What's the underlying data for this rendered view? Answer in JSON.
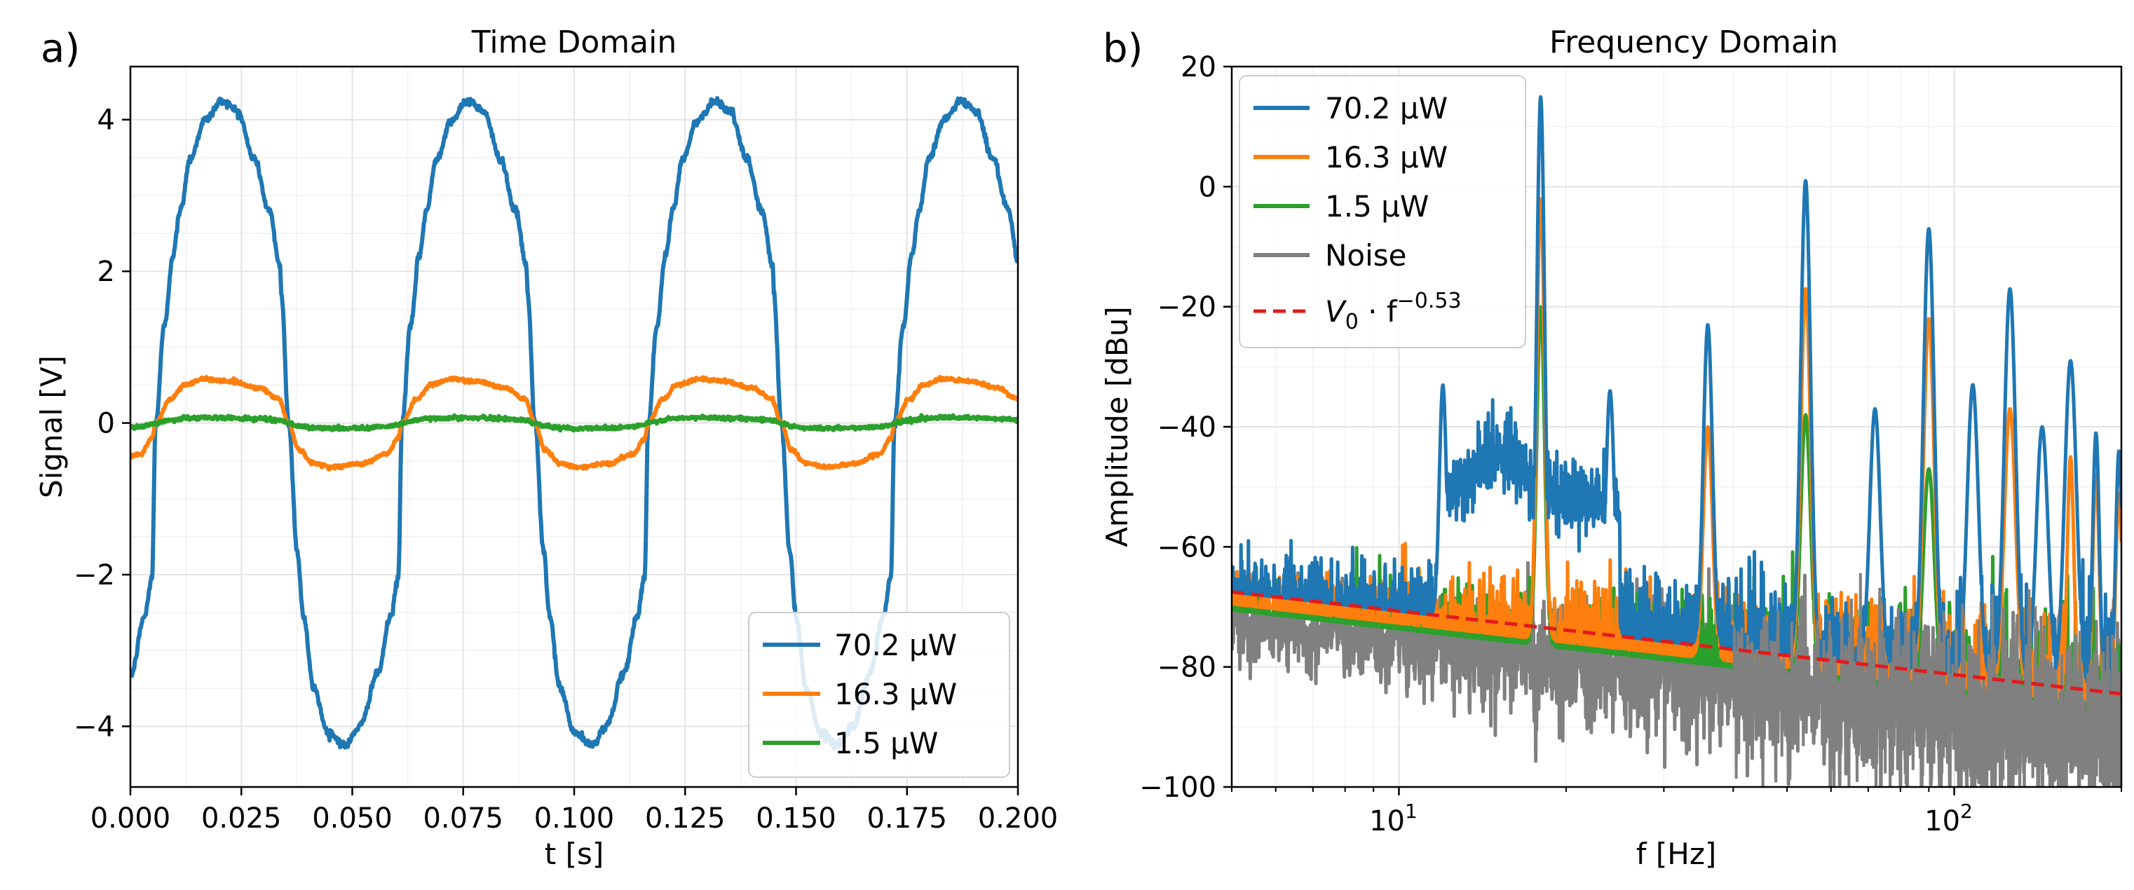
{
  "chart_data": [
    {
      "type": "line",
      "panel_label": "a)",
      "title": "Time Domain",
      "xlabel": "t [s]",
      "ylabel": "Signal [V]",
      "xlim": [
        0,
        0.2
      ],
      "ylim": [
        -4.8,
        4.7
      ],
      "xticks": [
        {
          "value": 0.0,
          "label": "0.000"
        },
        {
          "value": 0.025,
          "label": "0.025"
        },
        {
          "value": 0.05,
          "label": "0.050"
        },
        {
          "value": 0.075,
          "label": "0.075"
        },
        {
          "value": 0.1,
          "label": "0.100"
        },
        {
          "value": 0.125,
          "label": "0.125"
        },
        {
          "value": 0.15,
          "label": "0.150"
        },
        {
          "value": 0.175,
          "label": "0.175"
        },
        {
          "value": 0.2,
          "label": "0.200"
        }
      ],
      "yticks": [
        {
          "value": 4,
          "label": "4"
        },
        {
          "value": 2,
          "label": "2"
        },
        {
          "value": 0,
          "label": "0"
        },
        {
          "value": -2,
          "label": "−2"
        },
        {
          "value": -4,
          "label": "−4"
        }
      ],
      "grid": true,
      "legend_position": "bottom-right",
      "period_s": 0.0555,
      "series": [
        {
          "name": "70.2 μW",
          "color": "#1f77b4",
          "amplitude_V": 4.25,
          "peak_t_s": 0.016,
          "trough_t_s": 0.044
        },
        {
          "name": "16.3 μW",
          "color": "#ff7f0e",
          "amplitude_V": 0.58,
          "peak_t_s": 0.016,
          "trough_t_s": 0.044
        },
        {
          "name": "1.5 μW",
          "color": "#2ca02c",
          "amplitude_V": 0.07,
          "peak_t_s": 0.016,
          "trough_t_s": 0.044
        }
      ]
    },
    {
      "type": "line",
      "panel_label": "b)",
      "title": "Frequency Domain",
      "xlabel": "f [Hz]",
      "ylabel": "Amplitude [dBu]",
      "xscale": "log",
      "xlim": [
        5,
        200
      ],
      "ylim": [
        -100,
        20
      ],
      "xticks": [
        {
          "value": 10,
          "label": "10",
          "sup": "1"
        },
        {
          "value": 100,
          "label": "10",
          "sup": "2"
        }
      ],
      "yticks": [
        {
          "value": 20,
          "label": "20"
        },
        {
          "value": 0,
          "label": "0"
        },
        {
          "value": -20,
          "label": "−20"
        },
        {
          "value": -40,
          "label": "−40"
        },
        {
          "value": -60,
          "label": "−60"
        },
        {
          "value": -80,
          "label": "−80"
        },
        {
          "value": -100,
          "label": "−100"
        }
      ],
      "grid": true,
      "legend_position": "top-left",
      "fundamental_Hz": 18,
      "series": [
        {
          "name": "70.2 μW",
          "color": "#1f77b4",
          "peaks_dBu": [
            {
              "f": 12,
              "a": -33
            },
            {
              "f": 18,
              "a": 15
            },
            {
              "f": 24,
              "a": -34
            },
            {
              "f": 36,
              "a": -23
            },
            {
              "f": 54,
              "a": 1
            },
            {
              "f": 72,
              "a": -37
            },
            {
              "f": 90,
              "a": -7
            },
            {
              "f": 108,
              "a": -33
            },
            {
              "f": 126,
              "a": -17
            },
            {
              "f": 144,
              "a": -40
            },
            {
              "f": 162,
              "a": -29
            }
          ]
        },
        {
          "name": "16.3 μW",
          "color": "#ff7f0e",
          "peaks_dBu": [
            {
              "f": 18,
              "a": -2
            },
            {
              "f": 36,
              "a": -40
            },
            {
              "f": 54,
              "a": -17
            },
            {
              "f": 90,
              "a": -22
            },
            {
              "f": 126,
              "a": -37
            }
          ]
        },
        {
          "name": "1.5 μW",
          "color": "#2ca02c",
          "peaks_dBu": [
            {
              "f": 18,
              "a": -20
            },
            {
              "f": 54,
              "a": -38
            },
            {
              "f": 90,
              "a": -47
            }
          ]
        },
        {
          "name": "Noise",
          "color": "#808080",
          "baseline_dBu": -75
        },
        {
          "name": "V0 · f^−0.53",
          "color": "#e31a1c",
          "dashed": true,
          "fit_at_5Hz_dBu": -67.5,
          "exponent": -0.53
        }
      ]
    }
  ],
  "legend_b_fit": {
    "base": "V",
    "sub": "0",
    "mid": " · f",
    "sup": "−0.53"
  }
}
